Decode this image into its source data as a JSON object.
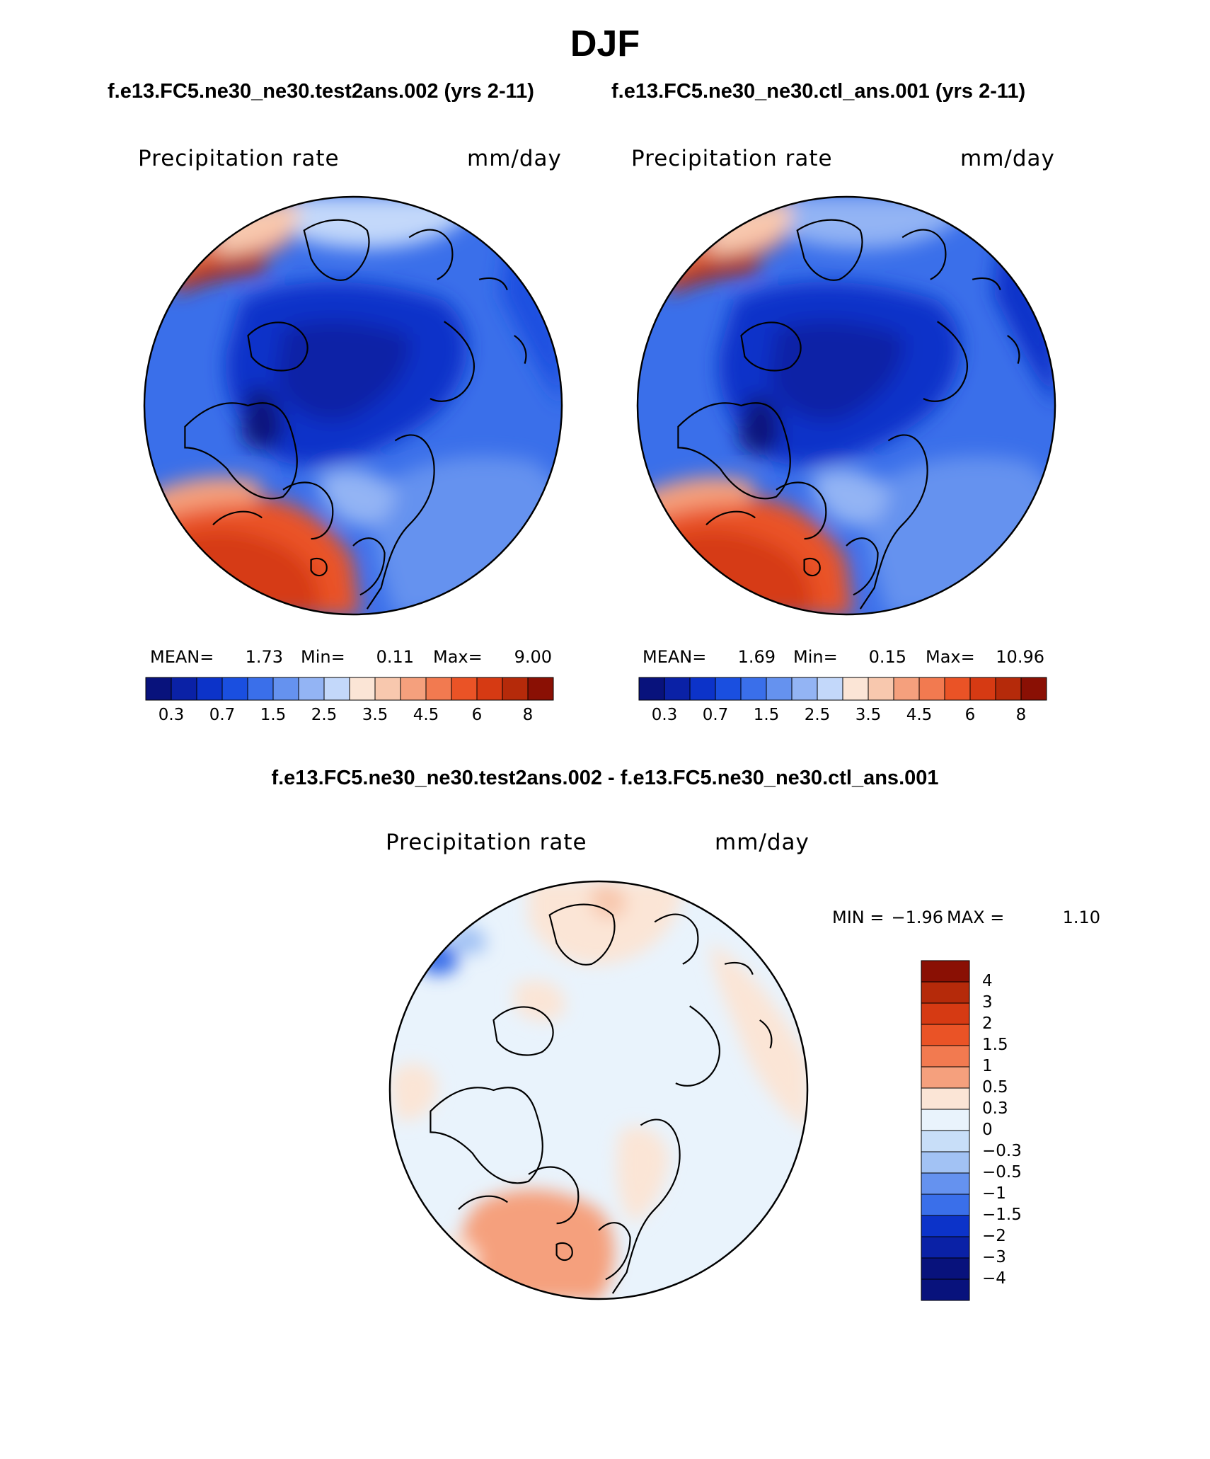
{
  "title": "DJF",
  "chart_data": [
    {
      "type": "heatmap",
      "projection": "north-polar-stereographic",
      "case_title": "f.e13.FC5.ne30_ne30.test2ans.002 (yrs 2-11)",
      "variable": "Precipitation rate",
      "units": "mm/day",
      "stats": {
        "mean_label": "MEAN=",
        "mean": "1.73",
        "min_label": "Min=",
        "min": "0.11",
        "max_label": "Max=",
        "max": "9.00"
      },
      "colorbar_levels": [
        0.2,
        0.3,
        0.5,
        0.7,
        1,
        1.5,
        2,
        2.5,
        3,
        3.5,
        4,
        4.5,
        5,
        6,
        7,
        8
      ],
      "colorbar_tick_labels": [
        "0.3",
        "0.7",
        "1.5",
        "2.5",
        "3.5",
        "4.5",
        "6",
        "8"
      ]
    },
    {
      "type": "heatmap",
      "projection": "north-polar-stereographic",
      "case_title": "f.e13.FC5.ne30_ne30.ctl_ans.001 (yrs 2-11)",
      "variable": "Precipitation rate",
      "units": "mm/day",
      "stats": {
        "mean_label": "MEAN=",
        "mean": "1.69",
        "min_label": "Min=",
        "min": "0.15",
        "max_label": "Max=",
        "max": "10.96"
      },
      "colorbar_levels": [
        0.2,
        0.3,
        0.5,
        0.7,
        1,
        1.5,
        2,
        2.5,
        3,
        3.5,
        4,
        4.5,
        5,
        6,
        7,
        8
      ],
      "colorbar_tick_labels": [
        "0.3",
        "0.7",
        "1.5",
        "2.5",
        "3.5",
        "4.5",
        "6",
        "8"
      ]
    },
    {
      "type": "heatmap",
      "projection": "north-polar-stereographic",
      "case_title": "f.e13.FC5.ne30_ne30.test2ans.002 - f.e13.FC5.ne30_ne30.ctl_ans.001",
      "variable": "Precipitation rate",
      "units": "mm/day",
      "stats": {
        "min_label": "MIN =",
        "min": "−1.96",
        "max_label": "MAX =",
        "max": "1.10"
      },
      "colorbar_tick_labels": [
        "4",
        "3",
        "2",
        "1.5",
        "1",
        "0.5",
        "0.3",
        "0",
        "−0.3",
        "−0.5",
        "−1",
        "−1.5",
        "−2",
        "−3",
        "−4"
      ]
    }
  ],
  "colors": {
    "abs_scale": [
      "#08127c",
      "#0a21a6",
      "#0c33c9",
      "#1a4fe0",
      "#3a6fea",
      "#6592ef",
      "#93b4f4",
      "#c3d8fa",
      "#fbe5d6",
      "#f8c8ae",
      "#f5a07d",
      "#f27a50",
      "#ea5326",
      "#d63a13",
      "#b52a0a",
      "#8a1004"
    ],
    "diff_scale": [
      "#8a1004",
      "#b52a0a",
      "#d63a13",
      "#ea5326",
      "#f27a50",
      "#f5a07d",
      "#fbe5d6",
      "#e9f3fc",
      "#c8def8",
      "#a2c2f4",
      "#6592ef",
      "#3a6fea",
      "#0c33c9",
      "#0a21a6",
      "#08127c"
    ]
  }
}
